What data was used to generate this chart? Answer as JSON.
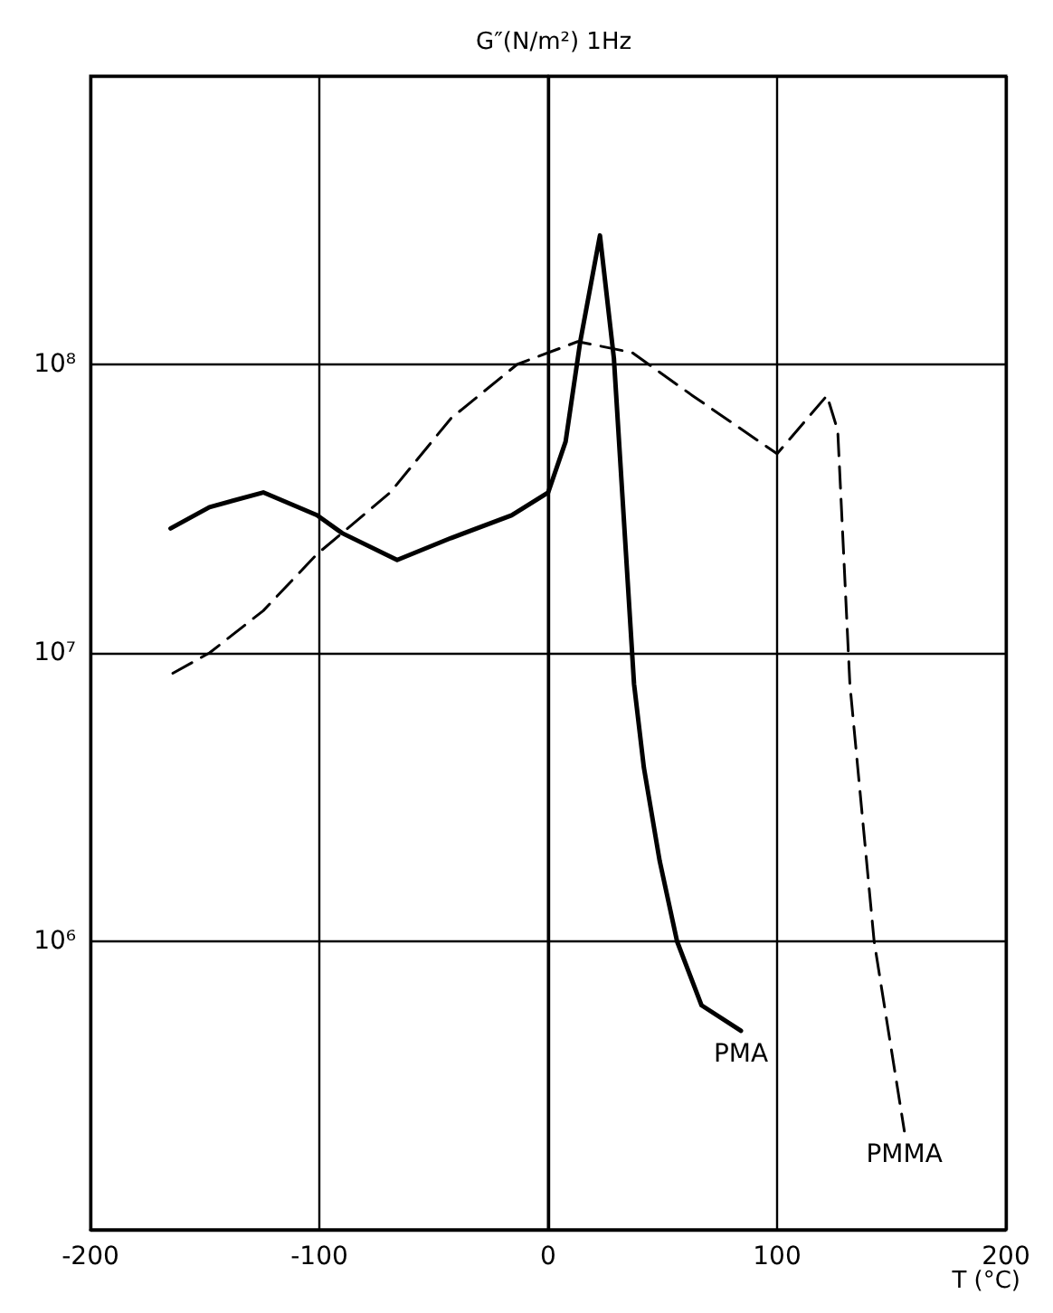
{
  "chart_data": {
    "type": "line",
    "ylabel": "G″(N/m²) 1Hz",
    "xlabel": "T (°C)",
    "log": "y",
    "grid": true,
    "legend": false,
    "marker": "none",
    "xlim": [
      -200,
      200
    ],
    "xticks": [
      -200,
      -100,
      0,
      100,
      200
    ],
    "ylim": [
      100000,
      1000000000
    ],
    "yticks": [
      {
        "value": 100000,
        "label": null
      },
      {
        "value": 1000000,
        "label": "10⁶"
      },
      {
        "value": 10000000,
        "label": "10⁷"
      },
      {
        "value": 100000000,
        "label": "10⁸"
      },
      {
        "value": 1000000000,
        "label": null
      }
    ],
    "series": [
      {
        "name": "PMA",
        "color": "#000000",
        "line_style": "solid",
        "x": [
          -165,
          -148,
          -124.5,
          -101,
          -90,
          -66,
          -42.5,
          -16,
          0,
          7.6,
          14,
          22.6,
          28.7,
          37.5,
          41.8,
          48.7,
          56.3,
          67,
          84.2
        ],
        "values": [
          27000000,
          32000000,
          36000000,
          30000000,
          26000000,
          21000000,
          25000000,
          30000000,
          36000000,
          54000000,
          120000000,
          280000000,
          105000000,
          7800000,
          4000000,
          1900000,
          1000000,
          600000,
          490000
        ]
      },
      {
        "name": "PMMA",
        "color": "#000000",
        "line_style": "dashed",
        "x": [
          -164,
          -148,
          -124.5,
          -101,
          -69,
          -42.5,
          -13.6,
          12.9,
          36.6,
          63,
          100,
          121.8,
          126.5,
          131.8,
          142.4,
          155.6
        ],
        "values": [
          8500000,
          10000000,
          14000000,
          22000000,
          36000000,
          65000000,
          100000000,
          120000000,
          110000000,
          78000000,
          49000000,
          78000000,
          59000000,
          7800000,
          1000000,
          220000
        ]
      }
    ]
  }
}
